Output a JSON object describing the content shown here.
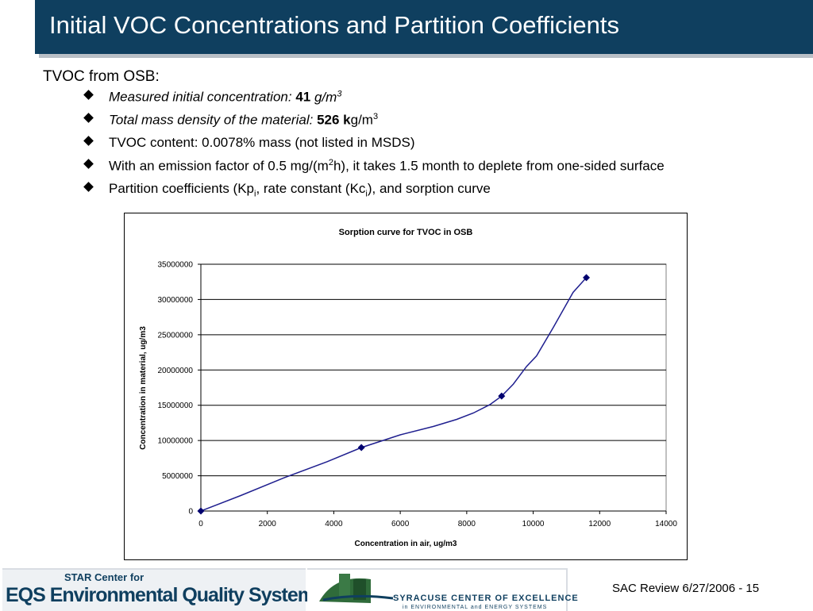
{
  "title": "Initial VOC Concentrations and Partition Coefficients",
  "lead": "TVOC from OSB:",
  "bullets": {
    "b1": {
      "label": "Measured initial concentration:",
      "value": "41",
      "unit": "g/m",
      "unit_sup": "3"
    },
    "b2": {
      "label": "Total mass density of the material:",
      "value": "526 k",
      "unit": "g/m",
      "unit_sup": "3"
    },
    "b3": {
      "text": "TVOC content: 0.0078% mass (not listed in MSDS)"
    },
    "b4": {
      "pre": "With an emission factor of 0.5 mg/(m",
      "sup": "2",
      "post": "h), it takes 1.5 month to deplete from one-sided surface"
    },
    "b5": {
      "t1": "Partition coefficients (Kp",
      "s1": "i",
      "t2": ", rate constant (Kc",
      "s2": "i",
      "t3": "), and sorption curve"
    }
  },
  "chart_data": {
    "type": "line",
    "title": "Sorption curve for TVOC in OSB",
    "xlabel": "Concentration in air, ug/m3",
    "ylabel": "Concentration in material, ug/m3",
    "xlim": [
      0,
      14000
    ],
    "ylim": [
      0,
      35000000
    ],
    "x_ticks": [
      "0",
      "2000",
      "4000",
      "6000",
      "8000",
      "10000",
      "12000",
      "14000"
    ],
    "y_ticks": [
      "0",
      "5000000",
      "10000000",
      "15000000",
      "20000000",
      "25000000",
      "30000000",
      "35000000"
    ],
    "grid": "horizontal",
    "markers": [
      {
        "x": 0,
        "y": 0
      },
      {
        "x": 4830,
        "y": 9000000
      },
      {
        "x": 9050,
        "y": 16300000
      },
      {
        "x": 11600,
        "y": 33100000
      }
    ],
    "curve": [
      {
        "x": 0,
        "y": 0
      },
      {
        "x": 1200,
        "y": 2200000
      },
      {
        "x": 2500,
        "y": 4700000
      },
      {
        "x": 3800,
        "y": 7000000
      },
      {
        "x": 4830,
        "y": 9000000
      },
      {
        "x": 6000,
        "y": 10800000
      },
      {
        "x": 7000,
        "y": 12000000
      },
      {
        "x": 7700,
        "y": 13000000
      },
      {
        "x": 8200,
        "y": 13900000
      },
      {
        "x": 8700,
        "y": 15100000
      },
      {
        "x": 9050,
        "y": 16300000
      },
      {
        "x": 9400,
        "y": 18000000
      },
      {
        "x": 9800,
        "y": 20500000
      },
      {
        "x": 10100,
        "y": 22000000
      },
      {
        "x": 10600,
        "y": 26000000
      },
      {
        "x": 11200,
        "y": 31000000
      },
      {
        "x": 11600,
        "y": 33100000
      }
    ],
    "colors": {
      "line": "#1f1f8f",
      "marker": "#00006e",
      "grid": "#000000"
    }
  },
  "footer": {
    "slide_label": "SAC Review 6/27/2006 - 15",
    "logo_left_sub": "STAR Center for",
    "logo_left_main": "EQS Environmental Quality Systems",
    "logo_right_main": "SYRACUSE CENTER OF EXCELLENCE",
    "logo_right_sub": "in ENVIRONMENTAL and ENERGY SYSTEMS"
  }
}
